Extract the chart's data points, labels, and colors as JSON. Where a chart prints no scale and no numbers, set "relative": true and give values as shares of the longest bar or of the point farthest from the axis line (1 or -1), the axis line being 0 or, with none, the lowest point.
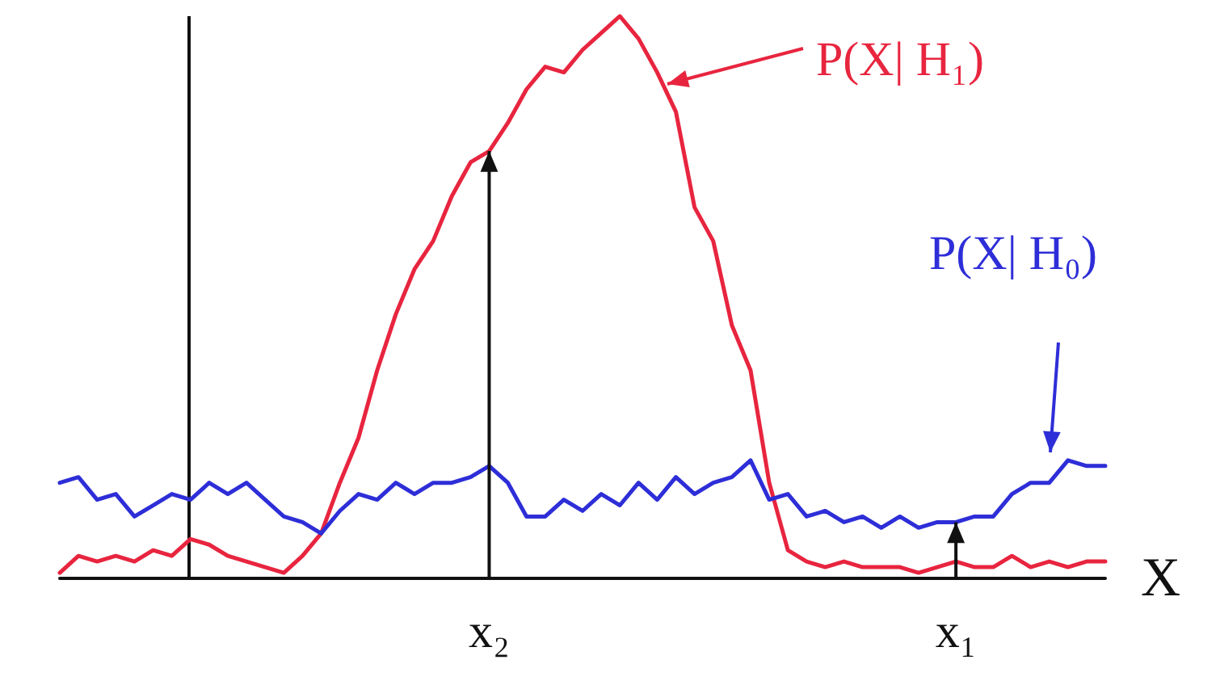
{
  "chart_data": {
    "type": "line",
    "relative": true,
    "xlabel": "X",
    "grid": false,
    "marker": "none",
    "line_style": "solid",
    "categories": [
      null,
      null,
      null,
      null,
      null,
      null,
      null,
      null,
      null,
      null,
      null,
      null,
      null,
      null,
      null,
      null,
      null,
      null,
      null,
      null,
      null,
      null,
      null,
      "x₂",
      null,
      null,
      null,
      null,
      null,
      null,
      null,
      null,
      null,
      null,
      null,
      null,
      null,
      null,
      null,
      null,
      null,
      null,
      null,
      null,
      null,
      null,
      null,
      null,
      "x₁",
      null,
      null,
      null,
      null,
      null,
      null,
      null,
      null
    ],
    "legend": "top right",
    "series": [
      {
        "name": "P(X| H₁)",
        "color": "#e8253f",
        "values": [
          0.01,
          0.04,
          0.03,
          0.04,
          0.03,
          0.05,
          0.04,
          0.07,
          0.06,
          0.04,
          0.03,
          0.02,
          0.01,
          0.04,
          0.08,
          0.17,
          0.25,
          0.37,
          0.47,
          0.55,
          0.6,
          0.68,
          0.74,
          0.76,
          0.81,
          0.87,
          0.91,
          0.9,
          0.94,
          0.97,
          1,
          0.96,
          0.9,
          0.83,
          0.66,
          0.6,
          0.45,
          0.37,
          0.17,
          0.05,
          0.03,
          0.02,
          0.03,
          0.02,
          0.02,
          0.02,
          0.01,
          0.02,
          0.03,
          0.02,
          0.02,
          0.04,
          0.02,
          0.03,
          0.02,
          0.03,
          0.03
        ]
      },
      {
        "name": "P(X| H₀)",
        "color": "#2e2ed8",
        "values": [
          0.17,
          0.18,
          0.14,
          0.15,
          0.11,
          0.13,
          0.15,
          0.14,
          0.17,
          0.15,
          0.17,
          0.14,
          0.11,
          0.1,
          0.08,
          0.12,
          0.15,
          0.14,
          0.17,
          0.15,
          0.17,
          0.17,
          0.18,
          0.2,
          0.17,
          0.11,
          0.11,
          0.14,
          0.12,
          0.15,
          0.13,
          0.17,
          0.14,
          0.18,
          0.15,
          0.17,
          0.18,
          0.21,
          0.14,
          0.15,
          0.11,
          0.12,
          0.1,
          0.11,
          0.09,
          0.11,
          0.09,
          0.1,
          0.1,
          0.11,
          0.11,
          0.15,
          0.17,
          0.17,
          0.21,
          0.2,
          0.2
        ]
      }
    ]
  }
}
